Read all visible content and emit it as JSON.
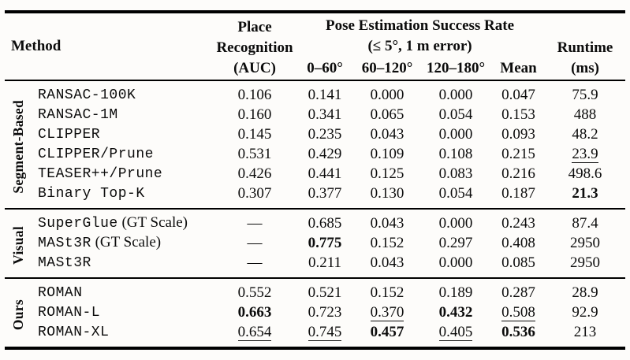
{
  "page": {
    "background_color": "#fdfcfa",
    "text_color": "#0c0c0c",
    "rule_color": "#000000"
  },
  "table": {
    "header": {
      "method_label": "Method",
      "place_recognition_lines": [
        "Place",
        "Recognition",
        "(AUC)"
      ],
      "pose_group_lines": [
        "Pose Estimation Success Rate",
        "(≤ 5°, 1 m error)"
      ],
      "sub_columns": [
        "0–60°",
        "60–120°",
        "120–180°",
        "Mean"
      ],
      "runtime_lines": [
        "Runtime",
        "(ms)"
      ]
    },
    "groups": [
      {
        "label": "Segment-Based",
        "rows": [
          {
            "method": "RANSAC-100K",
            "suffix": "",
            "cells": [
              {
                "v": "0.106",
                "s": ""
              },
              {
                "v": "0.141",
                "s": ""
              },
              {
                "v": "0.000",
                "s": ""
              },
              {
                "v": "0.000",
                "s": ""
              },
              {
                "v": "0.047",
                "s": ""
              },
              {
                "v": "75.9",
                "s": ""
              }
            ]
          },
          {
            "method": "RANSAC-1M",
            "suffix": "",
            "cells": [
              {
                "v": "0.160",
                "s": ""
              },
              {
                "v": "0.341",
                "s": ""
              },
              {
                "v": "0.065",
                "s": ""
              },
              {
                "v": "0.054",
                "s": ""
              },
              {
                "v": "0.153",
                "s": ""
              },
              {
                "v": "488",
                "s": ""
              }
            ]
          },
          {
            "method": "CLIPPER",
            "suffix": "",
            "cells": [
              {
                "v": "0.145",
                "s": ""
              },
              {
                "v": "0.235",
                "s": ""
              },
              {
                "v": "0.043",
                "s": ""
              },
              {
                "v": "0.000",
                "s": ""
              },
              {
                "v": "0.093",
                "s": ""
              },
              {
                "v": "48.2",
                "s": ""
              }
            ]
          },
          {
            "method": "CLIPPER/Prune",
            "suffix": "",
            "cells": [
              {
                "v": "0.531",
                "s": ""
              },
              {
                "v": "0.429",
                "s": ""
              },
              {
                "v": "0.109",
                "s": ""
              },
              {
                "v": "0.108",
                "s": ""
              },
              {
                "v": "0.215",
                "s": ""
              },
              {
                "v": "23.9",
                "s": "u"
              }
            ]
          },
          {
            "method": "TEASER++/Prune",
            "suffix": "",
            "cells": [
              {
                "v": "0.426",
                "s": ""
              },
              {
                "v": "0.441",
                "s": ""
              },
              {
                "v": "0.125",
                "s": ""
              },
              {
                "v": "0.083",
                "s": ""
              },
              {
                "v": "0.216",
                "s": ""
              },
              {
                "v": "498.6",
                "s": ""
              }
            ]
          },
          {
            "method": "Binary Top-K",
            "suffix": "",
            "cells": [
              {
                "v": "0.307",
                "s": ""
              },
              {
                "v": "0.377",
                "s": ""
              },
              {
                "v": "0.130",
                "s": ""
              },
              {
                "v": "0.054",
                "s": ""
              },
              {
                "v": "0.187",
                "s": ""
              },
              {
                "v": "21.3",
                "s": "b"
              }
            ]
          }
        ]
      },
      {
        "label": "Visual",
        "rows": [
          {
            "method": "SuperGlue",
            "suffix": " (GT Scale)",
            "cells": [
              {
                "v": "—",
                "s": ""
              },
              {
                "v": "0.685",
                "s": ""
              },
              {
                "v": "0.043",
                "s": ""
              },
              {
                "v": "0.000",
                "s": ""
              },
              {
                "v": "0.243",
                "s": ""
              },
              {
                "v": "87.4",
                "s": ""
              }
            ]
          },
          {
            "method": "MASt3R",
            "suffix": " (GT Scale)",
            "cells": [
              {
                "v": "—",
                "s": ""
              },
              {
                "v": "0.775",
                "s": "b"
              },
              {
                "v": "0.152",
                "s": ""
              },
              {
                "v": "0.297",
                "s": ""
              },
              {
                "v": "0.408",
                "s": ""
              },
              {
                "v": "2950",
                "s": ""
              }
            ]
          },
          {
            "method": "MASt3R",
            "suffix": "",
            "cells": [
              {
                "v": "—",
                "s": ""
              },
              {
                "v": "0.211",
                "s": ""
              },
              {
                "v": "0.043",
                "s": ""
              },
              {
                "v": "0.000",
                "s": ""
              },
              {
                "v": "0.085",
                "s": ""
              },
              {
                "v": "2950",
                "s": ""
              }
            ]
          }
        ]
      },
      {
        "label": "Ours",
        "rows": [
          {
            "method": "ROMAN",
            "suffix": "",
            "cells": [
              {
                "v": "0.552",
                "s": ""
              },
              {
                "v": "0.521",
                "s": ""
              },
              {
                "v": "0.152",
                "s": ""
              },
              {
                "v": "0.189",
                "s": ""
              },
              {
                "v": "0.287",
                "s": ""
              },
              {
                "v": "28.9",
                "s": ""
              }
            ]
          },
          {
            "method": "ROMAN-L",
            "suffix": "",
            "cells": [
              {
                "v": "0.663",
                "s": "b"
              },
              {
                "v": "0.723",
                "s": ""
              },
              {
                "v": "0.370",
                "s": "u"
              },
              {
                "v": "0.432",
                "s": "b"
              },
              {
                "v": "0.508",
                "s": "u"
              },
              {
                "v": "92.9",
                "s": ""
              }
            ]
          },
          {
            "method": "ROMAN-XL",
            "suffix": "",
            "cells": [
              {
                "v": "0.654",
                "s": "u"
              },
              {
                "v": "0.745",
                "s": "u"
              },
              {
                "v": "0.457",
                "s": "b"
              },
              {
                "v": "0.405",
                "s": "u"
              },
              {
                "v": "0.536",
                "s": "b"
              },
              {
                "v": "213",
                "s": ""
              }
            ]
          }
        ]
      }
    ]
  }
}
